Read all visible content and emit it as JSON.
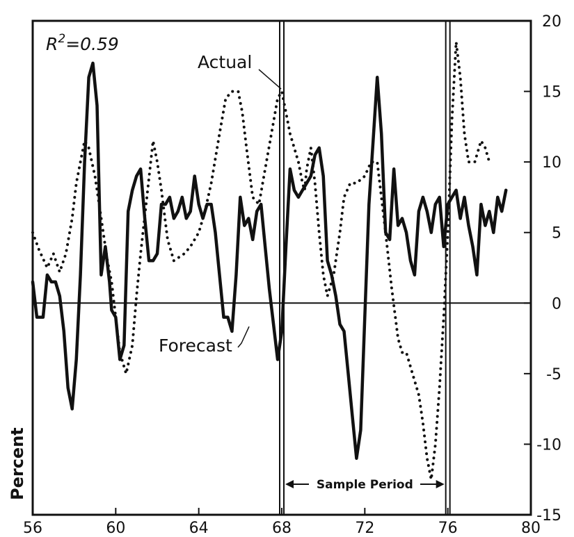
{
  "chart_data": {
    "type": "line",
    "title": "",
    "xlabel": "",
    "ylabel": "Percent",
    "xlim": [
      56,
      80
    ],
    "ylim": [
      -15,
      20
    ],
    "x_ticks": [
      56,
      60,
      64,
      68,
      72,
      76,
      80
    ],
    "y_ticks": [
      -15,
      -10,
      -5,
      0,
      5,
      10,
      15,
      20
    ],
    "y_axis_side": "right",
    "grid": false,
    "zero_line": true,
    "r_squared_label": "R",
    "r_squared_value": "=0.59",
    "sample_period": {
      "label": "Sample Period",
      "start": 68,
      "end": 76
    },
    "series": [
      {
        "name": "Actual",
        "style": "dotted",
        "x": [
          56.0,
          56.3,
          56.7,
          57.0,
          57.3,
          57.6,
          57.9,
          58.1,
          58.3,
          58.5,
          58.7,
          59.0,
          59.2,
          59.4,
          59.6,
          59.8,
          60.0,
          60.2,
          60.5,
          60.8,
          61.0,
          61.2,
          61.5,
          61.8,
          62.0,
          62.2,
          62.5,
          62.8,
          63.0,
          63.3,
          63.6,
          64.0,
          64.3,
          64.6,
          65.0,
          65.3,
          65.6,
          65.9,
          66.1,
          66.3,
          66.6,
          66.9,
          67.2,
          67.5,
          67.8,
          68.0,
          68.2,
          68.4,
          68.6,
          68.8,
          69.0,
          69.1,
          69.2,
          69.4,
          69.6,
          69.8,
          70.0,
          70.2,
          70.5,
          70.8,
          71.0,
          71.3,
          71.6,
          72.0,
          72.3,
          72.6,
          72.8,
          73.0,
          73.3,
          73.6,
          73.8,
          74.0,
          74.3,
          74.6,
          74.8,
          75.0,
          75.2,
          75.4,
          75.6,
          75.8,
          76.0,
          76.2,
          76.4,
          76.6,
          76.8,
          77.0,
          77.3,
          77.6,
          77.8,
          78.0
        ],
        "values": [
          5.0,
          3.8,
          2.5,
          3.5,
          2.2,
          3.5,
          6.0,
          8.5,
          10.0,
          11.5,
          11.0,
          9.0,
          7.0,
          5.0,
          3.0,
          1.5,
          -1.0,
          -3.5,
          -5.0,
          -3.0,
          0.5,
          3.5,
          7.5,
          11.5,
          10.0,
          8.0,
          4.5,
          3.0,
          3.2,
          3.5,
          4.0,
          5.0,
          6.5,
          8.5,
          12.0,
          14.5,
          15.0,
          15.0,
          13.5,
          11.0,
          7.5,
          7.0,
          9.5,
          12.0,
          14.5,
          15.0,
          13.5,
          12.0,
          11.0,
          10.0,
          8.5,
          8.0,
          9.5,
          11.0,
          8.5,
          5.0,
          2.0,
          0.5,
          2.0,
          5.0,
          7.5,
          8.5,
          8.5,
          9.0,
          10.0,
          10.0,
          7.5,
          5.0,
          1.0,
          -2.5,
          -3.5,
          -3.5,
          -5.0,
          -6.5,
          -8.5,
          -11.0,
          -12.5,
          -10.0,
          -6.0,
          -1.0,
          5.0,
          13.0,
          18.5,
          16.0,
          12.0,
          10.0,
          10.0,
          11.5,
          11.0,
          10.0
        ]
      },
      {
        "name": "Forecast",
        "style": "solid",
        "x": [
          56.0,
          56.2,
          56.5,
          56.7,
          56.9,
          57.1,
          57.3,
          57.5,
          57.7,
          57.9,
          58.1,
          58.3,
          58.5,
          58.7,
          58.9,
          59.1,
          59.3,
          59.5,
          59.7,
          59.8,
          60.0,
          60.2,
          60.4,
          60.6,
          60.8,
          61.0,
          61.2,
          61.4,
          61.6,
          61.8,
          62.0,
          62.2,
          62.4,
          62.6,
          62.8,
          63.0,
          63.2,
          63.4,
          63.6,
          63.8,
          64.0,
          64.2,
          64.4,
          64.6,
          64.8,
          65.0,
          65.2,
          65.4,
          65.6,
          65.8,
          66.0,
          66.2,
          66.4,
          66.6,
          66.8,
          67.0,
          67.2,
          67.4,
          67.6,
          67.8,
          68.0,
          68.2,
          68.4,
          68.6,
          68.8,
          69.0,
          69.2,
          69.4,
          69.6,
          69.8,
          70.0,
          70.2,
          70.4,
          70.6,
          70.8,
          71.0,
          71.2,
          71.4,
          71.6,
          71.8,
          72.0,
          72.2,
          72.4,
          72.6,
          72.8,
          73.0,
          73.2,
          73.4,
          73.6,
          73.8,
          74.0,
          74.2,
          74.4,
          74.6,
          74.8,
          75.0,
          75.2,
          75.4,
          75.6,
          75.8,
          76.0,
          76.2,
          76.4,
          76.6,
          76.8,
          77.0,
          77.2,
          77.4,
          77.6,
          77.8,
          78.0,
          78.2,
          78.4,
          78.6,
          78.8
        ],
        "values": [
          1.5,
          -1.0,
          -1.0,
          2.0,
          1.5,
          1.5,
          0.5,
          -2.0,
          -6.0,
          -7.5,
          -4.0,
          2.0,
          10.0,
          16.0,
          17.0,
          14.0,
          2.0,
          4.0,
          1.5,
          -0.5,
          -1.0,
          -4.0,
          -3.0,
          6.5,
          8.0,
          9.0,
          9.5,
          6.0,
          3.0,
          3.0,
          3.5,
          7.0,
          7.0,
          7.5,
          6.0,
          6.5,
          7.5,
          6.0,
          6.5,
          9.0,
          7.0,
          6.0,
          7.0,
          7.0,
          5.0,
          2.0,
          -1.0,
          -1.0,
          -2.0,
          2.0,
          7.5,
          5.5,
          6.0,
          4.5,
          6.5,
          7.0,
          4.0,
          1.0,
          -1.5,
          -4.0,
          -2.0,
          4.0,
          9.5,
          8.0,
          7.5,
          8.0,
          8.5,
          9.0,
          10.5,
          11.0,
          9.0,
          3.0,
          2.0,
          0.5,
          -1.5,
          -2.0,
          -5.0,
          -8.0,
          -11.0,
          -9.0,
          -1.0,
          7.0,
          11.5,
          16.0,
          12.0,
          5.0,
          4.5,
          9.5,
          5.5,
          6.0,
          5.0,
          3.0,
          2.0,
          6.5,
          7.5,
          6.5,
          5.0,
          7.0,
          7.5,
          4.0,
          7.0,
          7.5,
          8.0,
          6.0,
          7.5,
          5.5,
          4.0,
          2.0,
          7.0,
          5.5,
          6.5,
          5.0,
          7.5,
          6.5,
          8.0
        ]
      }
    ]
  }
}
